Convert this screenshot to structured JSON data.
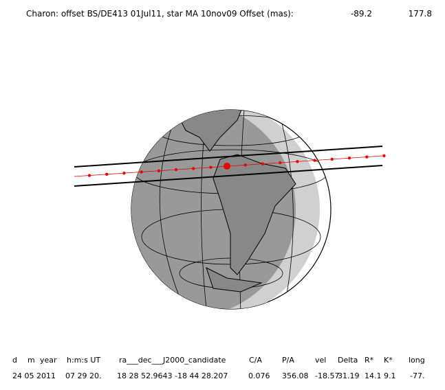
{
  "header": {
    "title": "Charon: offset BS/DE413 01Jul11, star MA 10nov09  Offset (mas):",
    "offset_x": "-89.2",
    "offset_y": "177.8"
  },
  "table": {
    "columns": [
      "d",
      "m",
      "year",
      "h:m:s UT",
      "ra___dec___J2000_candidate",
      "C/A",
      "P/A",
      "vel",
      "Delta",
      "R*",
      "K*",
      "long"
    ],
    "row": [
      "24 05 2011",
      "07 29 20.",
      "18 28 52.9643 -18 44  28.207",
      "0.076",
      "356.08",
      "-18.57",
      "31.19",
      "14.1",
      "9.1",
      "-77."
    ]
  }
}
